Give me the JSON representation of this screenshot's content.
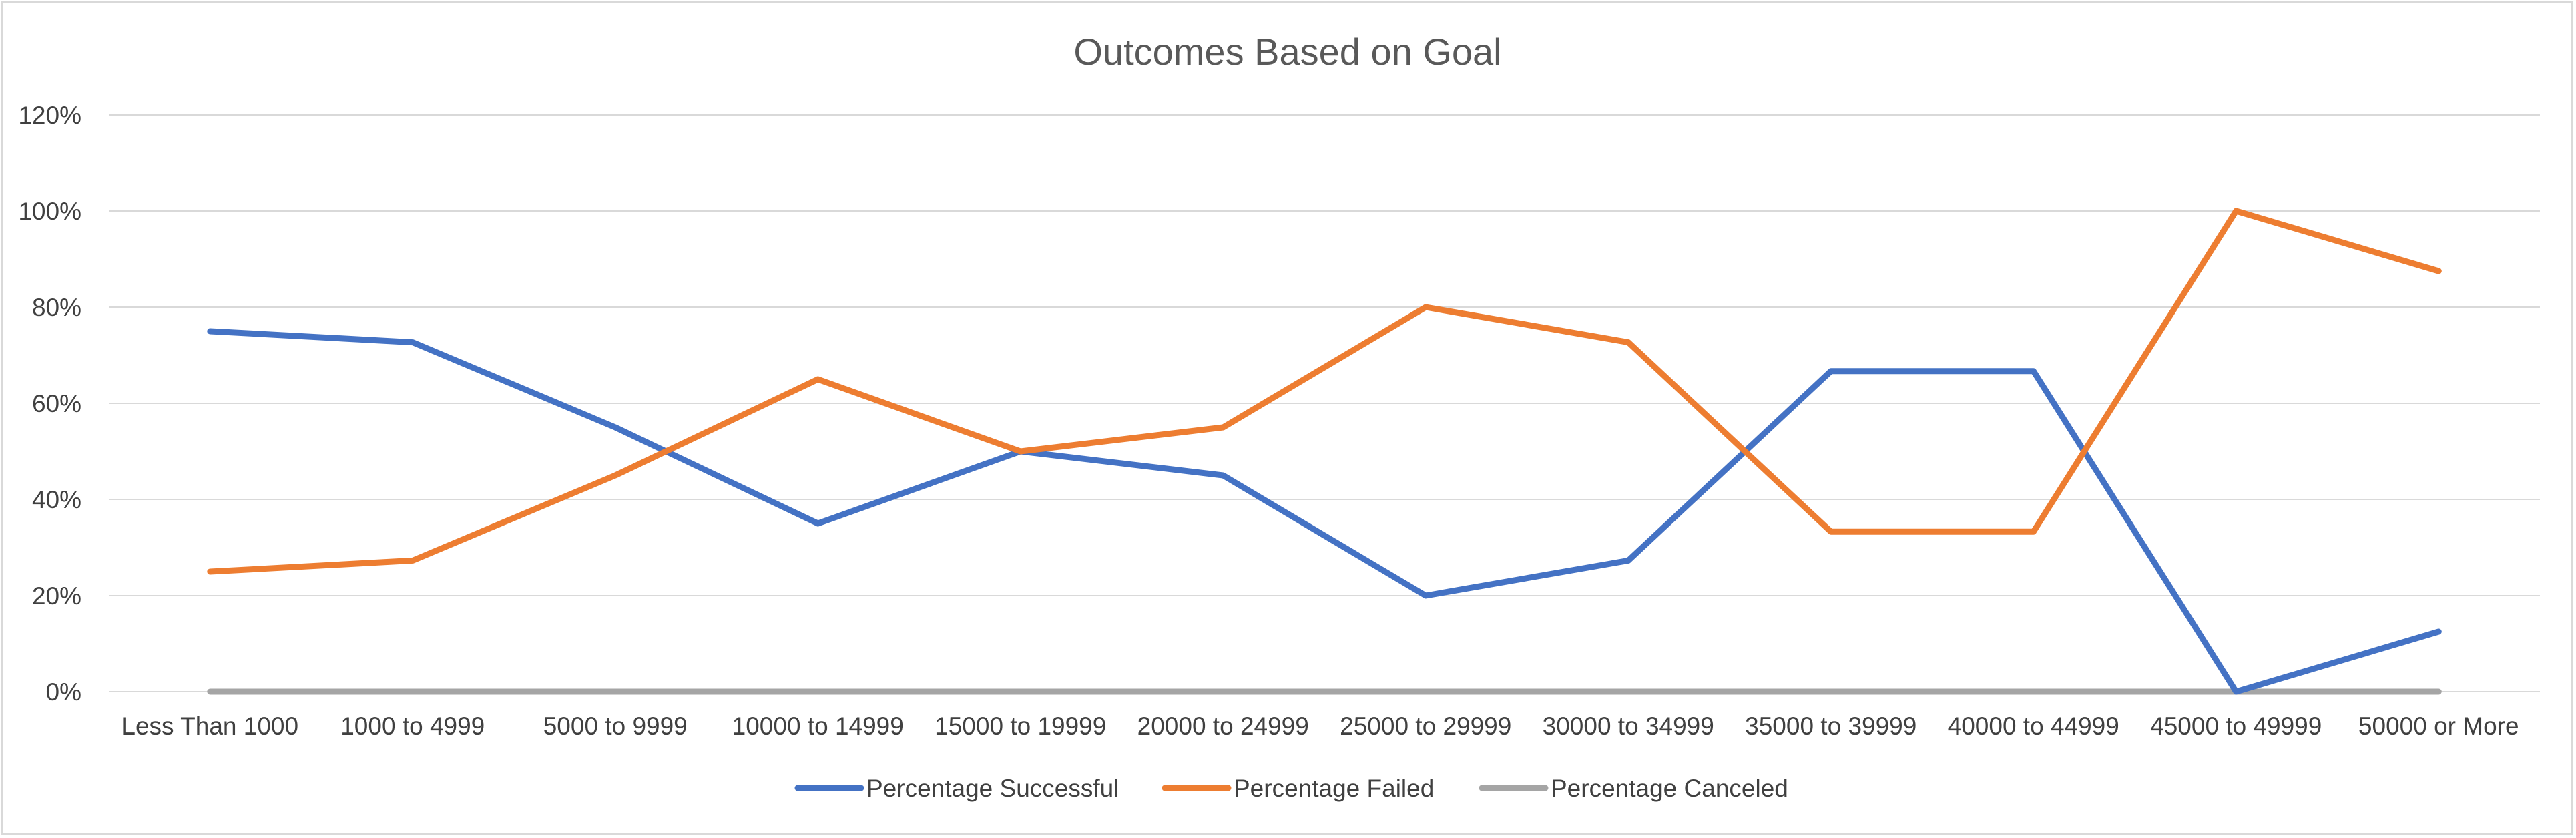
{
  "chart_data": {
    "type": "line",
    "title": "Outcomes Based on Goal",
    "xlabel": "",
    "ylabel": "",
    "categories": [
      "Less Than 1000",
      "1000 to 4999",
      "5000 to 9999",
      "10000 to 14999",
      "15000 to 19999",
      "20000 to 24999",
      "25000 to 29999",
      "30000 to 34999",
      "35000 to 39999",
      "40000 to 44999",
      "45000 to 49999",
      "50000 or More"
    ],
    "series": [
      {
        "name": "Percentage Successful",
        "color": "#4472c4",
        "values": [
          75,
          72.7,
          55,
          35,
          50,
          45,
          20,
          27.3,
          66.7,
          66.7,
          0,
          12.5
        ]
      },
      {
        "name": "Percentage Failed",
        "color": "#ed7d31",
        "values": [
          25,
          27.3,
          45,
          65,
          50,
          55,
          80,
          72.7,
          33.3,
          33.3,
          100,
          87.5
        ]
      },
      {
        "name": "Percentage Canceled",
        "color": "#a5a5a5",
        "values": [
          0,
          0,
          0,
          0,
          0,
          0,
          0,
          0,
          0,
          0,
          0,
          0
        ]
      }
    ],
    "ylim": [
      0,
      120
    ],
    "yticks": [
      0,
      20,
      40,
      60,
      80,
      100,
      120
    ],
    "ytick_labels": [
      "0%",
      "20%",
      "40%",
      "60%",
      "80%",
      "100%",
      "120%"
    ],
    "grid": true,
    "legend": "bottom",
    "gridline_color": "#d9d9d9"
  }
}
